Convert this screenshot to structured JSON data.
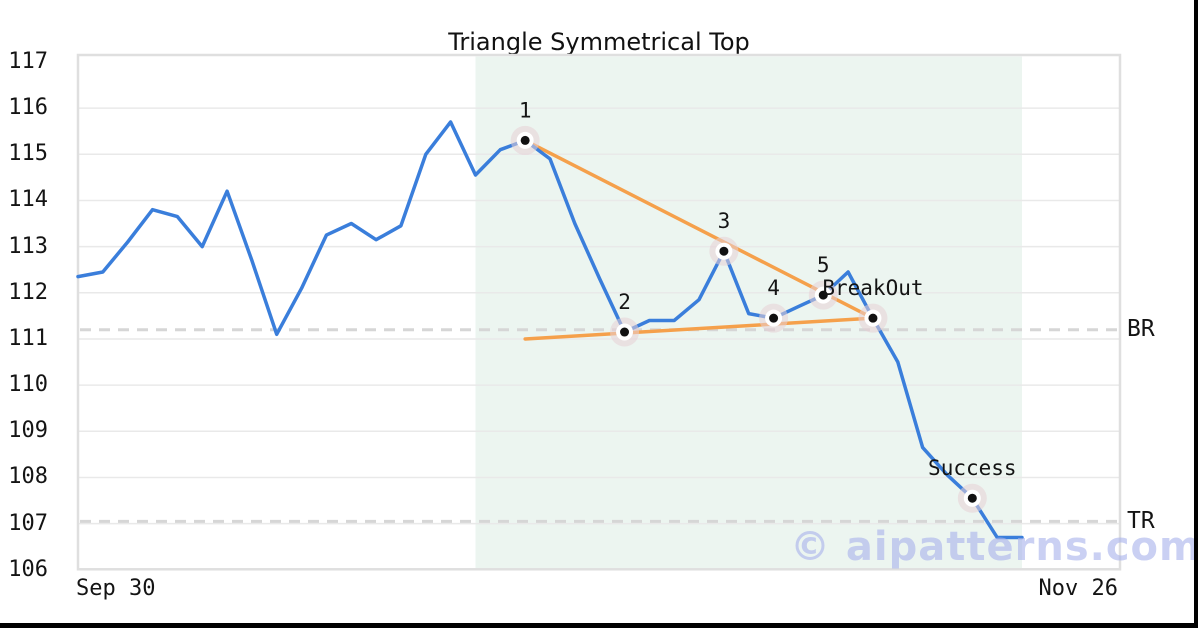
{
  "title": "Triangle Symmetrical Top",
  "watermark": "© aipatterns.com",
  "axis": {
    "x_ticks": [
      {
        "label": "Sep 30"
      },
      {
        "label": "Nov 26"
      }
    ],
    "y_tick_values": [
      106,
      107,
      108,
      109,
      110,
      111,
      112,
      113,
      114,
      115,
      116,
      117
    ]
  },
  "levels": [
    {
      "label": "BR",
      "value": 111.2
    },
    {
      "label": "TR",
      "value": 107.05
    }
  ],
  "chart_data": {
    "type": "line",
    "title": "Triangle Symmetrical Top",
    "xlabel": "",
    "ylabel": "",
    "ylim": [
      106,
      117.15
    ],
    "grid": "horizontal",
    "x_range_labels": [
      "Sep 30",
      "Nov 26"
    ],
    "values": [
      112.35,
      112.45,
      113.1,
      113.8,
      113.65,
      113.0,
      114.2,
      112.7,
      111.1,
      112.1,
      113.25,
      113.5,
      113.15,
      113.45,
      115.0,
      115.7,
      114.55,
      115.1,
      115.3,
      114.9,
      113.5,
      112.3,
      111.15,
      111.4,
      111.4,
      111.85,
      112.9,
      111.55,
      111.45,
      111.7,
      111.95,
      112.45,
      111.45,
      110.5,
      108.65,
      108.05,
      107.55,
      106.7,
      106.7
    ],
    "markers": [
      {
        "index": 18,
        "value": 115.3,
        "label": "1"
      },
      {
        "index": 22,
        "value": 111.15,
        "label": "2"
      },
      {
        "index": 26,
        "value": 112.9,
        "label": "3"
      },
      {
        "index": 28,
        "value": 111.45,
        "label": "4"
      },
      {
        "index": 30,
        "value": 111.95,
        "label": "5"
      },
      {
        "index": 32,
        "value": 111.45,
        "label": "BreakOut"
      },
      {
        "index": 36,
        "value": 107.55,
        "label": "Success"
      }
    ],
    "trendlines": [
      {
        "name": "upper",
        "from_index": 18,
        "from_value": 115.3,
        "to_index": 32,
        "to_value": 111.45
      },
      {
        "name": "lower",
        "from_index": 18,
        "from_value": 111.0,
        "to_index": 32,
        "to_value": 111.45
      }
    ],
    "dashed_levels": [
      {
        "label": "BR",
        "value": 111.2
      },
      {
        "label": "TR",
        "value": 107.05
      }
    ],
    "shaded_region": {
      "from_index": 16,
      "to_index": 38
    },
    "colors": {
      "line": "#3a7edb",
      "trendline": "#f5a04b",
      "shade": "#ecf5f0",
      "grid": "#e9e9e9",
      "border": "#dfdfdf",
      "dashed": "#d6d6d6",
      "marker_dot": "#111111",
      "marker_ring": "#ffffff",
      "marker_halo": "#e7d0d5",
      "watermark": "#aab4ec"
    }
  }
}
